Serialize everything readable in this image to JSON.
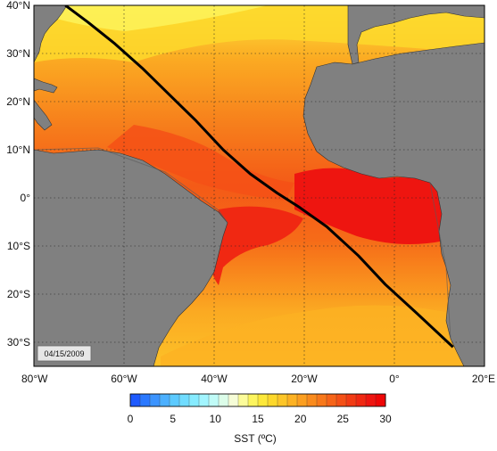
{
  "map": {
    "lat_labels": [
      "40°N",
      "30°N",
      "20°N",
      "10°N",
      "0°",
      "10°S",
      "20°S",
      "30°S"
    ],
    "lon_labels": [
      "80°W",
      "60°W",
      "40°W",
      "20°W",
      "0°",
      "20°E"
    ],
    "lat_range": [
      -35,
      40
    ],
    "lon_range": [
      -80,
      20
    ],
    "gridlines": "dotted",
    "land_color": "#808080",
    "date_stamp": "04/15/2009",
    "track": {
      "color": "#000000",
      "points_lonlat": [
        [
          -73,
          40
        ],
        [
          -68,
          36.5
        ],
        [
          -62,
          32
        ],
        [
          -56,
          27
        ],
        [
          -50,
          21.5
        ],
        [
          -44,
          16
        ],
        [
          -38,
          10
        ],
        [
          -32,
          5
        ],
        [
          -26,
          1
        ],
        [
          -21,
          -2
        ],
        [
          -15,
          -6
        ],
        [
          -8,
          -12
        ],
        [
          -2,
          -18
        ],
        [
          5,
          -24
        ],
        [
          13,
          -31
        ]
      ]
    }
  },
  "colorbar": {
    "ticks": [
      "0",
      "5",
      "10",
      "15",
      "20",
      "25",
      "30"
    ],
    "label": "SST (ºC)",
    "range": [
      0,
      30
    ],
    "colors": [
      "#1e5aff",
      "#2a78ff",
      "#3c94ff",
      "#4cb0ff",
      "#5ccaff",
      "#70dcff",
      "#86ebff",
      "#a2f5ff",
      "#c0fbf7",
      "#dcfde9",
      "#f6fdd7",
      "#fcfc9a",
      "#fdf55e",
      "#fde83a",
      "#fdd82b",
      "#fdc628",
      "#fdb223",
      "#fc9f20",
      "#fa8b1d",
      "#f8781a",
      "#f66418",
      "#f45016",
      "#f23b14",
      "#f02812",
      "#ee1510",
      "#ee0606"
    ]
  }
}
